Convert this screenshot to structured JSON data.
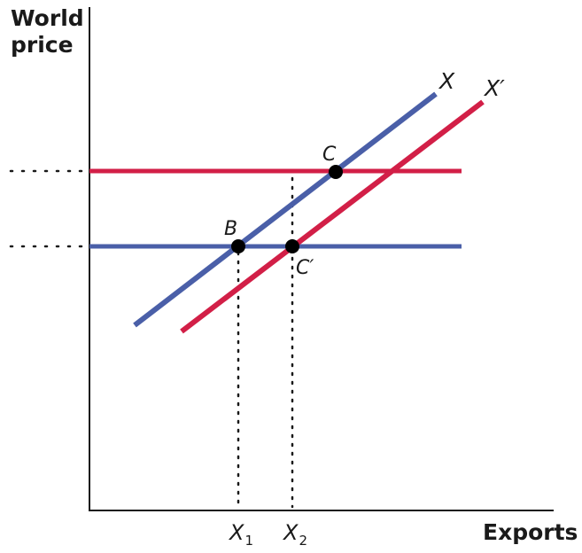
{
  "axes": {
    "y_title_line1": "World",
    "y_title_line2": "price",
    "x_title": "Exports"
  },
  "curves": [
    {
      "name": "X",
      "label": "X",
      "color": "#4a5fa8"
    },
    {
      "name": "X'",
      "label": "X′",
      "color": "#d21f47"
    }
  ],
  "price_lines": [
    {
      "level": "high",
      "color": "#d21f47"
    },
    {
      "level": "low",
      "color": "#4a5fa8"
    }
  ],
  "points": [
    {
      "label": "C"
    },
    {
      "label": "B"
    },
    {
      "label": "C′"
    }
  ],
  "x_ticks": [
    {
      "base": "X",
      "sub": "1"
    },
    {
      "base": "X",
      "sub": "2"
    }
  ]
}
